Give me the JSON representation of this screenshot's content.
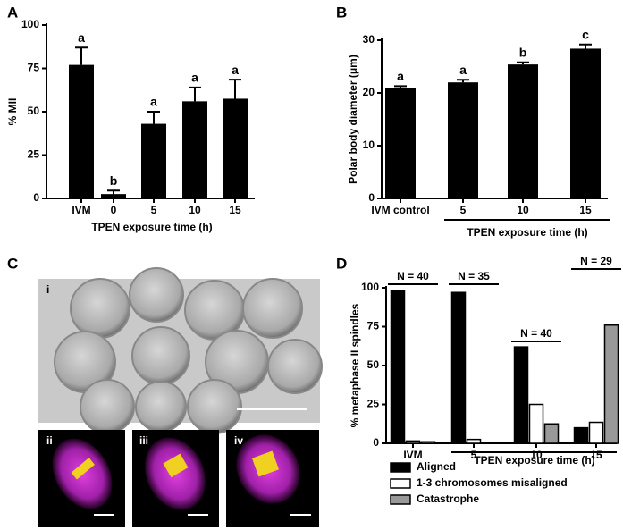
{
  "chart_data": [
    {
      "type": "bar",
      "panel": "A",
      "y_label": "% MII",
      "x_label": "TPEN exposure time (h)",
      "categories": [
        "IVM",
        "0",
        "5",
        "10",
        "15"
      ],
      "values": [
        77,
        2.5,
        43,
        56,
        57.5
      ],
      "errors": [
        10,
        2,
        7,
        8,
        11
      ],
      "annotations": [
        "a",
        "b",
        "a",
        "a",
        "a"
      ],
      "color": "#000000",
      "ylim": [
        0,
        100
      ],
      "yticks": [
        0,
        25,
        50,
        75,
        100
      ]
    },
    {
      "type": "bar",
      "panel": "B",
      "y_label": "Polar body diameter (μm)",
      "x_label": "TPEN exposure time (h)",
      "categories": [
        "IVM control",
        "5",
        "10",
        "15"
      ],
      "values": [
        21,
        22,
        25.4,
        28.4
      ],
      "errors": [
        0.3,
        0.5,
        0.4,
        0.8
      ],
      "annotations": [
        "a",
        "a",
        "b",
        "c"
      ],
      "color": "#000000",
      "ylim": [
        0,
        30
      ],
      "yticks": [
        0,
        10,
        20,
        30
      ]
    },
    {
      "type": "image",
      "panel": "C",
      "labels": [
        "i",
        "ii",
        "iii",
        "iv"
      ]
    },
    {
      "type": "grouped-bar",
      "panel": "D",
      "y_label": "% metaphase II spindles",
      "x_label": "TPEN exposure time (h)",
      "categories": [
        "IVM",
        "5",
        "10",
        "15"
      ],
      "annotations": [
        "N = 40",
        "N = 35",
        "N = 40",
        "N = 29"
      ],
      "series": [
        {
          "name": "Aligned",
          "color": "#000000",
          "values": [
            98,
            97,
            62,
            10
          ]
        },
        {
          "name": "1-3 chromosomes misaligned",
          "color": "#ffffff",
          "values": [
            1.5,
            2.5,
            25,
            13.5
          ]
        },
        {
          "name": "Catastrophe",
          "color": "#999999",
          "values": [
            1,
            0,
            12.5,
            76
          ]
        }
      ],
      "ylim": [
        0,
        100
      ],
      "yticks": [
        0,
        25,
        50,
        75,
        100
      ]
    }
  ]
}
